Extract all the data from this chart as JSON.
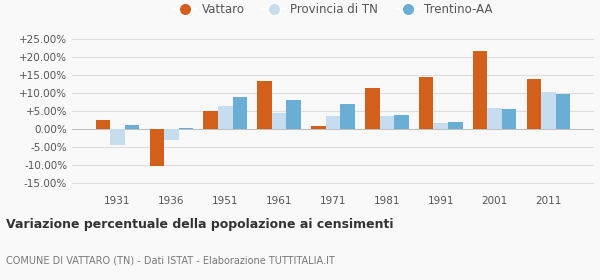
{
  "years": [
    1931,
    1936,
    1951,
    1961,
    1971,
    1981,
    1991,
    2001,
    2011
  ],
  "vattaro": [
    2.5,
    -10.3,
    5.1,
    13.4,
    0.8,
    11.3,
    14.5,
    21.7,
    13.8
  ],
  "provincia_tn": [
    -4.5,
    -3.0,
    6.5,
    4.5,
    3.7,
    3.5,
    1.7,
    5.8,
    10.2
  ],
  "trentino_aa": [
    1.0,
    0.3,
    9.0,
    8.0,
    7.0,
    3.8,
    2.0,
    5.5,
    9.8
  ],
  "color_vattaro": "#d2601a",
  "color_provincia": "#c5ddef",
  "color_trentino": "#6aadd5",
  "title": "Variazione percentuale della popolazione ai censimenti",
  "subtitle": "COMUNE DI VATTARO (TN) - Dati ISTAT - Elaborazione TUTTITALIA.IT",
  "ylim": [
    -17,
    28
  ],
  "yticks": [
    -15,
    -10,
    -5,
    0,
    5,
    10,
    15,
    20,
    25
  ],
  "bar_width": 0.27,
  "legend_labels": [
    "Vattaro",
    "Provincia di TN",
    "Trentino-AA"
  ],
  "bg_color": "#f9f9f9",
  "grid_color": "#dddddd",
  "text_color": "#555555"
}
